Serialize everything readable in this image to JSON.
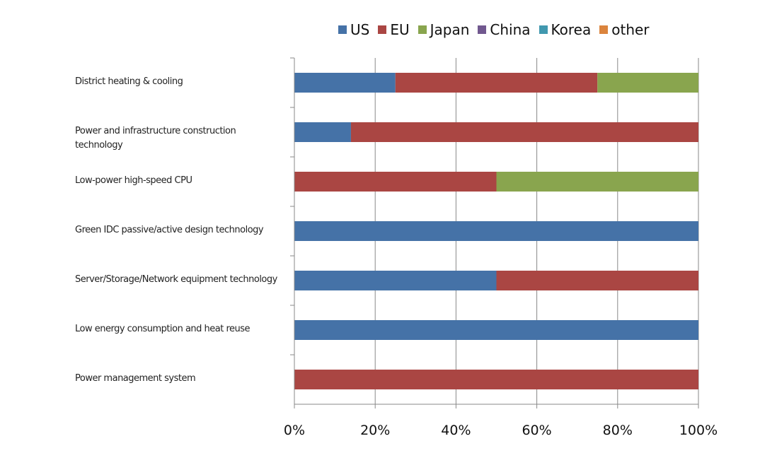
{
  "chart_data": {
    "type": "stacked_barh",
    "categories": [
      "District heating & cooling",
      "Power and infrastructure construction technology",
      "Low-power high-speed CPU",
      "Green IDC passive/active design technology",
      "Server/Storage/Network equipment technology",
      "Low energy consumption and heat reuse",
      "Power management system"
    ],
    "series": [
      {
        "name": "US",
        "color": "#4572a7",
        "values": [
          25,
          14,
          0,
          100,
          50,
          100,
          0
        ]
      },
      {
        "name": "EU",
        "color": "#aa4643",
        "values": [
          50,
          86,
          50,
          0,
          50,
          0,
          100
        ]
      },
      {
        "name": "Japan",
        "color": "#89a54e",
        "values": [
          25,
          0,
          50,
          0,
          0,
          0,
          0
        ]
      },
      {
        "name": "China",
        "color": "#71588f",
        "values": [
          0,
          0,
          0,
          0,
          0,
          0,
          0
        ]
      },
      {
        "name": "Korea",
        "color": "#4198af",
        "values": [
          0,
          0,
          0,
          0,
          0,
          0,
          0
        ]
      },
      {
        "name": "other",
        "color": "#db843d",
        "values": [
          0,
          0,
          0,
          0,
          0,
          0,
          0
        ]
      }
    ],
    "xlim": [
      0,
      100
    ],
    "xticks": [
      {
        "value": 0,
        "label": "0%"
      },
      {
        "value": 20,
        "label": "20%"
      },
      {
        "value": 40,
        "label": "40%"
      },
      {
        "value": 60,
        "label": "60%"
      },
      {
        "value": 80,
        "label": "80%"
      },
      {
        "value": 100,
        "label": "100%"
      }
    ],
    "grid": true,
    "legend": "top"
  }
}
